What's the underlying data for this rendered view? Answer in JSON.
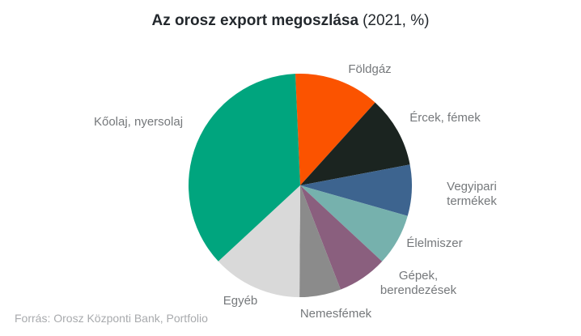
{
  "title": {
    "main": "Az orosz export megoszlása",
    "suffix": "(2021, %)"
  },
  "source": "Forrás: Orosz Központi Bank, Portfolio",
  "chart_data": {
    "type": "pie",
    "title": "Az orosz export megoszlása (2021, %)",
    "unit": "%",
    "year": "2021",
    "legend": "none",
    "labels_position": "outside",
    "direction": "clockwise",
    "start_angle_deg": -2.5,
    "slices": [
      {
        "key": "foldgaz",
        "label": "Földgáz",
        "value": 12.4,
        "color": "#fb5300"
      },
      {
        "key": "ercek-femek",
        "label": "Ércek, fémek",
        "value": 10.3,
        "color": "#1b2420"
      },
      {
        "key": "vegyipari",
        "label": "Vegyipari termékek",
        "value": 7.4,
        "color": "#3d648f"
      },
      {
        "key": "elelmiszer",
        "label": "Élelmiszer",
        "value": 7.5,
        "color": "#76b1ad"
      },
      {
        "key": "gepek",
        "label": "Gépek, berendezések",
        "value": 7.2,
        "color": "#8a5f7e"
      },
      {
        "key": "nemesfemek",
        "label": "Nemesfémek",
        "value": 6.0,
        "color": "#8b8b8b"
      },
      {
        "key": "egyeb",
        "label": "Egyéb",
        "value": 13.0,
        "color": "#d9d9d9"
      },
      {
        "key": "koolaj",
        "label": "Kőolaj, nyersolaj",
        "value": 36.2,
        "color": "#00a57e"
      }
    ]
  }
}
